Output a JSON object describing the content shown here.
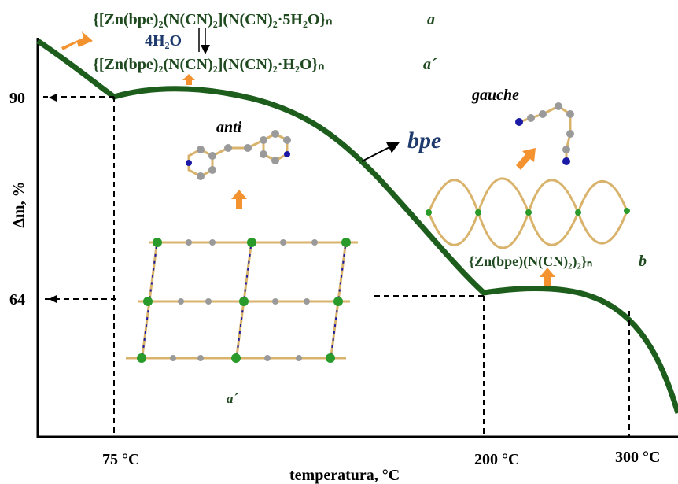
{
  "formulas": {
    "a": {
      "text": "{[Zn(bpe)₂(N(CN)₂](N(CN)₂·5H₂O}ₙ",
      "label": "a"
    },
    "water": "4H₂O",
    "a_prime": {
      "text": "{[Zn(bpe)₂(N(CN)₂](N(CN)₂·H₂O}ₙ",
      "label": "a´"
    },
    "b": {
      "text": "{Zn(bpe)(N(CN)₂)₂}ₙ",
      "label": "b"
    }
  },
  "labels": {
    "gauche": "gauche",
    "anti": "anti",
    "bpe": "bpe",
    "a_prime_structure": "a´"
  },
  "axes": {
    "y_label": "Δm, %",
    "y_ticks": [
      "90",
      "64"
    ],
    "x_ticks": [
      "75 °C",
      "200 °C",
      "300 °C"
    ],
    "x_label": "temperatura, °C"
  }
}
